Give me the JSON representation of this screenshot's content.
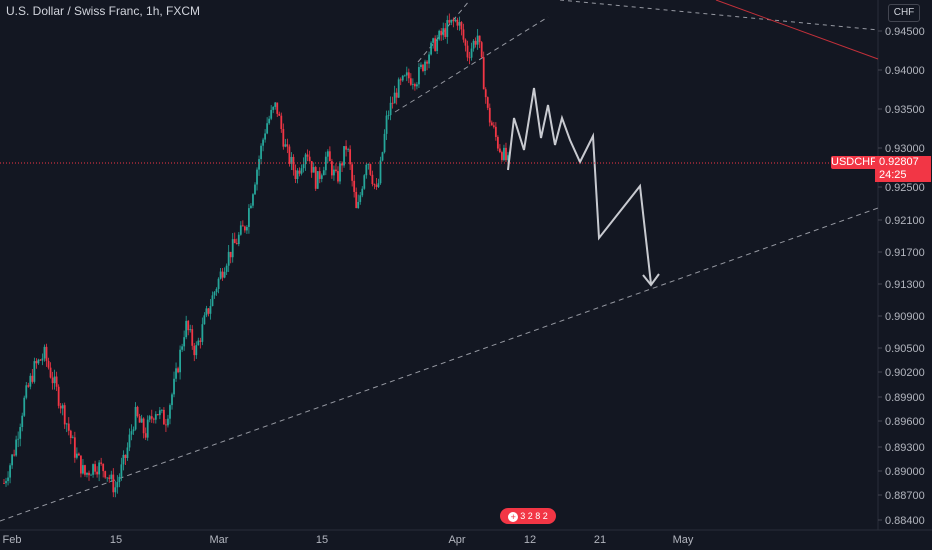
{
  "header": {
    "title": "U.S. Dollar / Swiss Franc, 1h, FXCM",
    "currency": "CHF"
  },
  "price_tag": {
    "symbol": "USDCHF",
    "value": "0.92807",
    "countdown": "24:25"
  },
  "event_badge": {
    "text": "3 2  8 2"
  },
  "colors": {
    "background": "#131722",
    "up": "#26a69a",
    "down": "#f23645",
    "projection": "#c8cad0",
    "trendline": "#9598a1",
    "red_line": "#c2303a"
  },
  "chart_data": {
    "type": "candlestick",
    "title": "U.S. Dollar / Swiss Franc, 1h, FXCM",
    "x_tick_labels": [
      "Feb",
      "15",
      "Mar",
      "15",
      "Apr",
      "12",
      "21",
      "May"
    ],
    "y_tick_labels": [
      "0.94500",
      "0.94000",
      "0.93500",
      "0.93000",
      "0.92500",
      "0.92100",
      "0.91700",
      "0.91300",
      "0.90900",
      "0.90500",
      "0.90200",
      "0.89900",
      "0.89600",
      "0.89300",
      "0.89000",
      "0.88700",
      "0.88400"
    ],
    "last_price": 0.92807,
    "price_trajectory": [
      0.8885,
      0.8925,
      0.8985,
      0.9025,
      0.9042,
      0.9005,
      0.8968,
      0.8925,
      0.8895,
      0.8908,
      0.8902,
      0.8878,
      0.8915,
      0.8968,
      0.8945,
      0.8975,
      0.896,
      0.901,
      0.908,
      0.9045,
      0.9088,
      0.9125,
      0.916,
      0.9182,
      0.9205,
      0.9268,
      0.933,
      0.9355,
      0.9295,
      0.9265,
      0.93,
      0.9255,
      0.929,
      0.9258,
      0.9305,
      0.9215,
      0.929,
      0.924,
      0.934,
      0.9375,
      0.939,
      0.939,
      0.942,
      0.9438,
      0.9455,
      0.9465,
      0.942,
      0.9445,
      0.9345,
      0.9305,
      0.928
    ],
    "projection_path": [
      [
        0.928,
        0.93
      ],
      [
        0.9288,
        0.934
      ],
      [
        0.9296,
        0.931
      ],
      [
        0.9304,
        0.937
      ],
      [
        0.9312,
        0.9325
      ],
      [
        0.9318,
        0.935
      ],
      [
        0.9324,
        0.931
      ],
      [
        0.933,
        0.934
      ],
      [
        0.9338,
        0.929
      ],
      [
        0.9346,
        0.9305
      ],
      [
        0.936,
        0.9185
      ],
      [
        0.9388,
        0.925
      ],
      [
        0.94,
        0.9125
      ]
    ],
    "trendlines": [
      {
        "name": "lower-support",
        "from": [
          0,
          0.884
        ],
        "to": [
          1,
          0.922
        ]
      },
      {
        "name": "upper-channel",
        "from": [
          0,
          0.937
        ],
        "to": [
          1,
          0.9485
        ]
      },
      {
        "name": "red-resistance",
        "from": [
          0,
          0.9485
        ],
        "to": [
          1,
          0.9415
        ]
      }
    ]
  }
}
